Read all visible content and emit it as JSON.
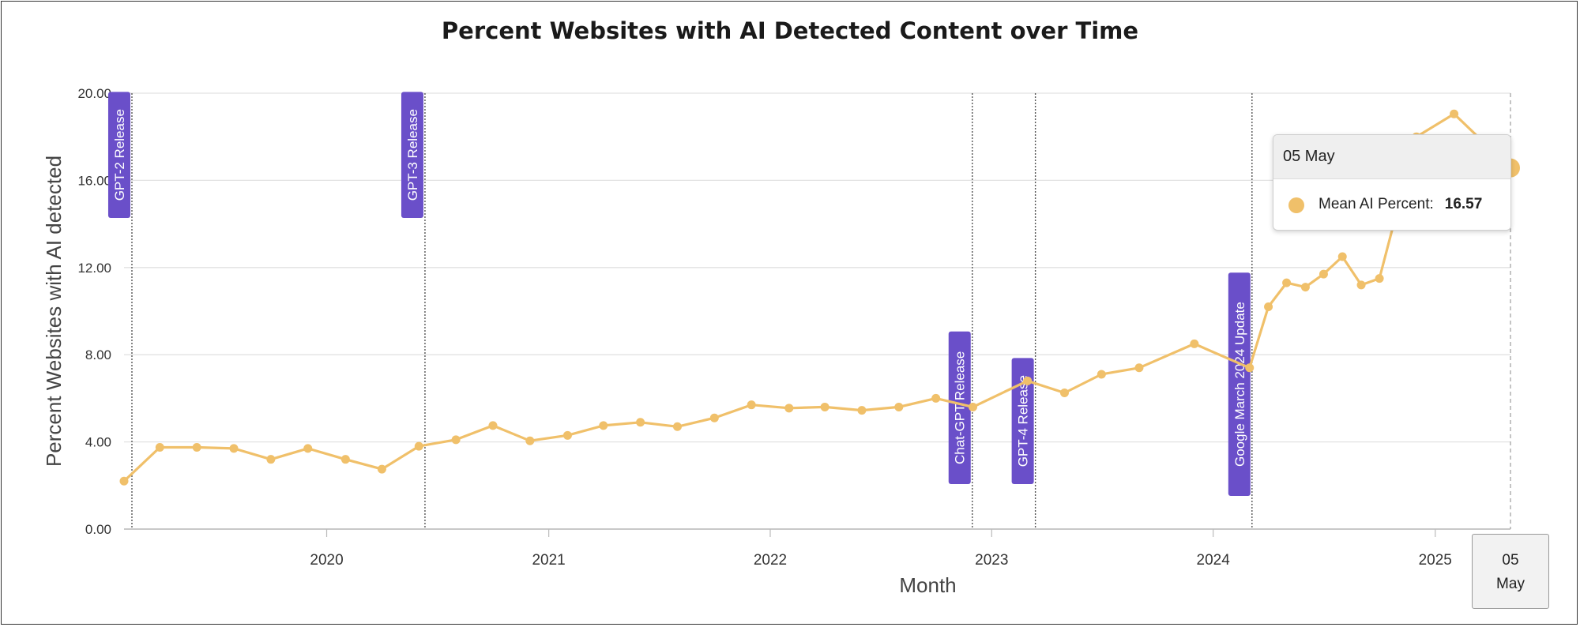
{
  "chart_data": {
    "type": "line",
    "title": "Percent Websites with AI Detected Content over Time",
    "xlabel": "Month",
    "ylabel": "Percent Websites with AI detected",
    "ylim": [
      0,
      20
    ],
    "y_ticks": [
      "0.00",
      "4.00",
      "8.00",
      "12.00",
      "16.00",
      "20.00"
    ],
    "xlim": [
      "2019-02-01",
      "2025-05-05"
    ],
    "x_ticks": [
      {
        "label": "2020",
        "date": "2020-01-01"
      },
      {
        "label": "2021",
        "date": "2021-01-01"
      },
      {
        "label": "2022",
        "date": "2022-01-01"
      },
      {
        "label": "2023",
        "date": "2023-01-01"
      },
      {
        "label": "2024",
        "date": "2024-01-01"
      },
      {
        "label": "2025",
        "date": "2025-01-01"
      }
    ],
    "grid": "horizontal",
    "color": "#f0c06a",
    "annotation_color": "#6a4fc9",
    "series": [
      {
        "name": "Mean AI Percent",
        "points": [
          {
            "x": "2019-02-01",
            "y": 2.2
          },
          {
            "x": "2019-04-01",
            "y": 3.75
          },
          {
            "x": "2019-06-01",
            "y": 3.75
          },
          {
            "x": "2019-08-01",
            "y": 3.7
          },
          {
            "x": "2019-10-01",
            "y": 3.2
          },
          {
            "x": "2019-12-01",
            "y": 3.7
          },
          {
            "x": "2020-02-01",
            "y": 3.2
          },
          {
            "x": "2020-04-01",
            "y": 2.75
          },
          {
            "x": "2020-06-01",
            "y": 3.8
          },
          {
            "x": "2020-08-01",
            "y": 4.1
          },
          {
            "x": "2020-10-01",
            "y": 4.75
          },
          {
            "x": "2020-12-01",
            "y": 4.05
          },
          {
            "x": "2021-02-01",
            "y": 4.3
          },
          {
            "x": "2021-04-01",
            "y": 4.75
          },
          {
            "x": "2021-06-01",
            "y": 4.9
          },
          {
            "x": "2021-08-01",
            "y": 4.7
          },
          {
            "x": "2021-10-01",
            "y": 5.1
          },
          {
            "x": "2021-12-01",
            "y": 5.7
          },
          {
            "x": "2022-02-01",
            "y": 5.55
          },
          {
            "x": "2022-04-01",
            "y": 5.6
          },
          {
            "x": "2022-06-01",
            "y": 5.45
          },
          {
            "x": "2022-08-01",
            "y": 5.6
          },
          {
            "x": "2022-10-01",
            "y": 6.0
          },
          {
            "x": "2022-12-01",
            "y": 5.6
          },
          {
            "x": "2023-03-01",
            "y": 6.8
          },
          {
            "x": "2023-05-01",
            "y": 6.25
          },
          {
            "x": "2023-07-01",
            "y": 7.1
          },
          {
            "x": "2023-09-01",
            "y": 7.4
          },
          {
            "x": "2023-12-01",
            "y": 8.5
          },
          {
            "x": "2024-03-01",
            "y": 7.4
          },
          {
            "x": "2024-04-01",
            "y": 10.2
          },
          {
            "x": "2024-05-01",
            "y": 11.3
          },
          {
            "x": "2024-06-01",
            "y": 11.1
          },
          {
            "x": "2024-07-01",
            "y": 11.7
          },
          {
            "x": "2024-08-01",
            "y": 12.5
          },
          {
            "x": "2024-09-01",
            "y": 11.2
          },
          {
            "x": "2024-10-01",
            "y": 11.5
          },
          {
            "x": "2024-12-01",
            "y": 18.0
          },
          {
            "x": "2025-02-01",
            "y": 19.05
          },
          {
            "x": "2025-05-05",
            "y": 16.57
          }
        ]
      }
    ],
    "annotations": [
      {
        "label": "GPT-2 Release",
        "date": "2019-02-14"
      },
      {
        "label": "GPT-3 Release",
        "date": "2020-06-11"
      },
      {
        "label": "Chat-GPT Release",
        "date": "2022-11-30"
      },
      {
        "label": "GPT-4 Release",
        "date": "2023-03-14"
      },
      {
        "label": "Google March 2024 Update",
        "date": "2024-03-05"
      }
    ],
    "tooltip": {
      "header": "05 May",
      "series_label": "Mean AI Percent:",
      "value": "16.57"
    },
    "crosshair_label": [
      "05",
      "May"
    ]
  }
}
